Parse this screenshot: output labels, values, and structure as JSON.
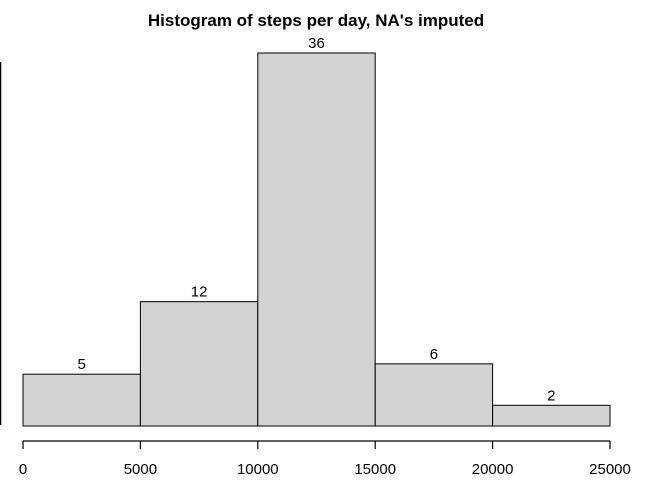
{
  "chart_data": {
    "type": "bar",
    "title": "Histogram of steps per day, NA's imputed",
    "xlabel": "",
    "ylabel": "",
    "categories": [
      "0-5000",
      "5000-10000",
      "10000-15000",
      "15000-20000",
      "20000-25000"
    ],
    "bins": [
      [
        0,
        5000
      ],
      [
        5000,
        10000
      ],
      [
        10000,
        15000
      ],
      [
        15000,
        20000
      ],
      [
        20000,
        25000
      ]
    ],
    "values": [
      5,
      12,
      36,
      6,
      2
    ],
    "data_labels": [
      "5",
      "12",
      "36",
      "6",
      "2"
    ],
    "xlim": [
      0,
      25000
    ],
    "ylim": [
      0,
      36
    ],
    "x_ticks": [
      0,
      5000,
      10000,
      15000,
      20000,
      25000
    ],
    "x_tick_labels": [
      "0",
      "5000",
      "10000",
      "15000",
      "20000",
      "25000"
    ],
    "bar_fill": "#d3d3d3",
    "bar_stroke": "#000000",
    "grid": false,
    "legend": "none"
  }
}
